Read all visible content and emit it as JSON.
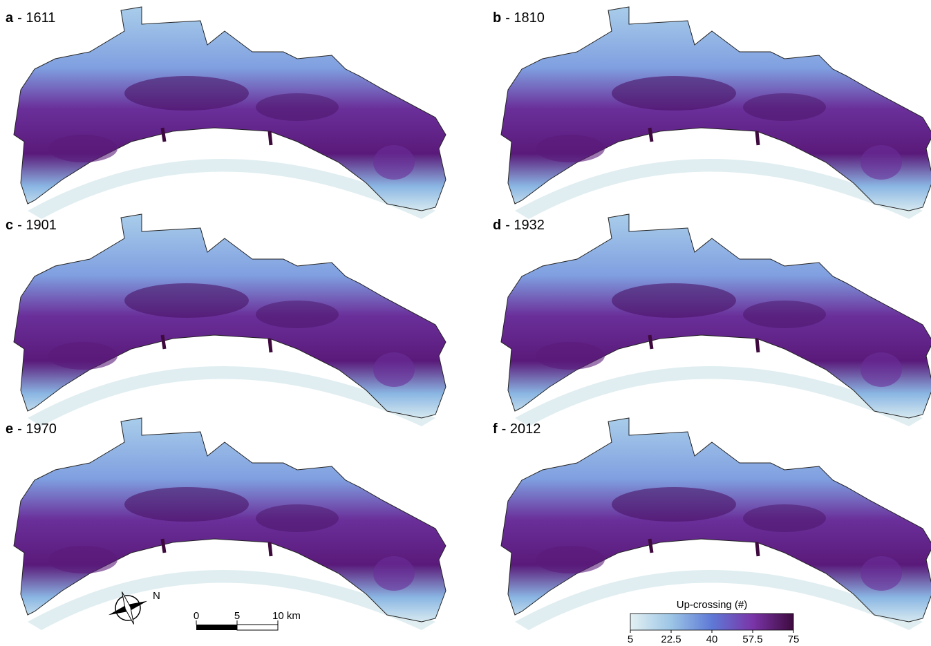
{
  "panels": [
    {
      "letter": "a",
      "caption": "- 1611"
    },
    {
      "letter": "b",
      "caption": "- 1810"
    },
    {
      "letter": "c",
      "caption": "- 1901"
    },
    {
      "letter": "d",
      "caption": "- 1932"
    },
    {
      "letter": "e",
      "caption": "- 1970"
    },
    {
      "letter": "f",
      "caption": "- 2012"
    }
  ],
  "compass": {
    "label": "N"
  },
  "scale_bar": {
    "xlim": [
      0,
      10
    ],
    "ticks": [
      0,
      5,
      {
        "value": 10,
        "label": "10 km"
      }
    ]
  },
  "colorbar": {
    "title": "Up-crossing (#)",
    "lim": [
      5,
      75
    ],
    "ticks": [
      5,
      22.5,
      40,
      57.5,
      75
    ],
    "colors": [
      "#e3f0f2",
      "#9cc5e6",
      "#5e79d6",
      "#7a35a8",
      "#3e0a3e"
    ]
  }
}
